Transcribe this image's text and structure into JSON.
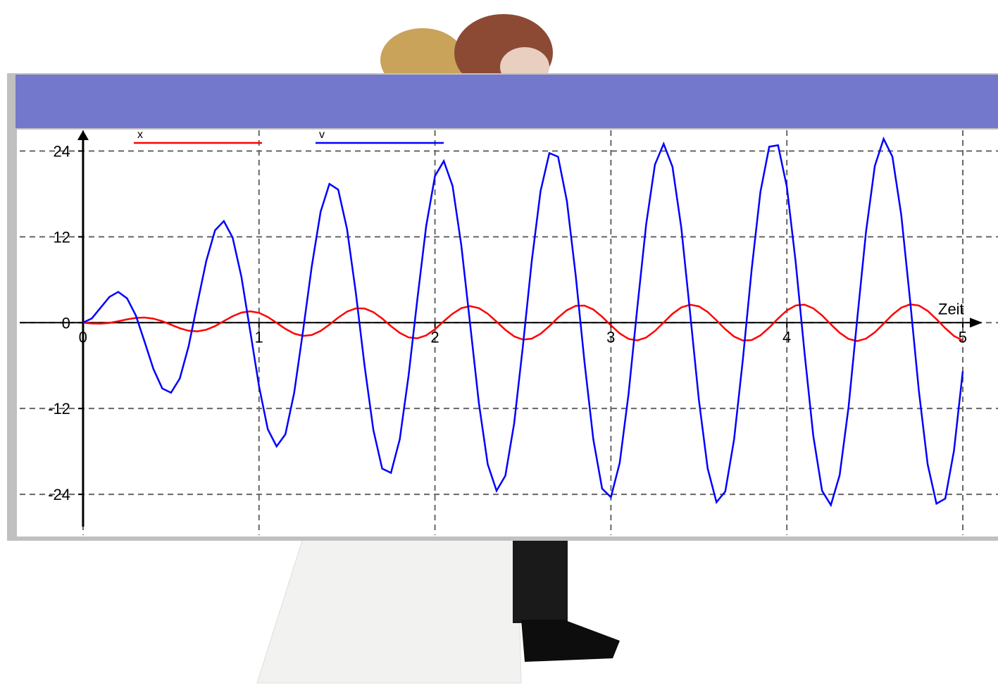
{
  "chart_data": {
    "type": "line",
    "x_label": "Zeit",
    "x": [
      0,
      0.05,
      0.1,
      0.15,
      0.2,
      0.25,
      0.3,
      0.35,
      0.4,
      0.45,
      0.5,
      0.55,
      0.6,
      0.65,
      0.7,
      0.75,
      0.8,
      0.85,
      0.9,
      0.95,
      1,
      1.05,
      1.1,
      1.15,
      1.2,
      1.25,
      1.3,
      1.35,
      1.4,
      1.45,
      1.5,
      1.55,
      1.6,
      1.65,
      1.7,
      1.75,
      1.8,
      1.85,
      1.9,
      1.95,
      2,
      2.05,
      2.1,
      2.15,
      2.2,
      2.25,
      2.3,
      2.35,
      2.4,
      2.45,
      2.5,
      2.55,
      2.6,
      2.65,
      2.7,
      2.75,
      2.8,
      2.85,
      2.9,
      2.95,
      3,
      3.05,
      3.1,
      3.15,
      3.2,
      3.25,
      3.3,
      3.35,
      3.4,
      3.45,
      3.5,
      3.55,
      3.6,
      3.65,
      3.7,
      3.75,
      3.8,
      3.85,
      3.9,
      3.95,
      4,
      4.05,
      4.1,
      4.15,
      4.2,
      4.25,
      4.3,
      4.35,
      4.4,
      4.45,
      4.5,
      4.55,
      4.6,
      4.65,
      4.7,
      4.75,
      4.8,
      4.85,
      4.9,
      4.95,
      5
    ],
    "series": [
      {
        "name": "x",
        "color": "#ff0000",
        "values": [
          0,
          -0.11,
          -0.13,
          -0.03,
          0.2,
          0.46,
          0.67,
          0.72,
          0.56,
          0.2,
          -0.29,
          -0.78,
          -1.13,
          -1.21,
          -0.99,
          -0.48,
          0.21,
          0.9,
          1.41,
          1.59,
          1.38,
          0.8,
          -0.01,
          -0.86,
          -1.53,
          -1.85,
          -1.72,
          -1.15,
          -0.27,
          0.71,
          1.54,
          2,
          1.99,
          1.47,
          0.58,
          -0.48,
          -1.43,
          -2.06,
          -2.19,
          -1.78,
          -0.92,
          0.2,
          1.25,
          2.03,
          2.31,
          2.03,
          1.25,
          0.15,
          -1,
          -1.92,
          -2.37,
          -2.24,
          -1.56,
          -0.48,
          0.71,
          1.74,
          2.35,
          2.39,
          1.84,
          0.83,
          -0.38,
          -1.51,
          -2.27,
          -2.48,
          -2.08,
          -1.16,
          0.03,
          1.24,
          2.13,
          2.51,
          2.28,
          1.49,
          0.32,
          -0.92,
          -1.94,
          -2.49,
          -2.43,
          -1.77,
          -0.68,
          0.58,
          1.7,
          2.41,
          2.52,
          2.01,
          1.02,
          -0.24,
          -1.42,
          -2.27,
          -2.57,
          -2.23,
          -1.35,
          -0.14,
          1.11,
          2.09,
          2.56,
          2.4,
          1.65,
          0.49,
          -0.77,
          -1.86,
          -2.49
        ]
      },
      {
        "name": "v",
        "color": "#0000ff",
        "values": [
          0,
          0.6,
          2.1,
          3.6,
          4.3,
          3.4,
          1,
          -2.7,
          -6.5,
          -9.2,
          -9.8,
          -7.8,
          -3.3,
          2.7,
          8.6,
          12.9,
          14.2,
          11.9,
          6.4,
          -1.2,
          -8.9,
          -14.9,
          -17.3,
          -15.6,
          -9.8,
          -1.2,
          7.9,
          15.5,
          19.4,
          18.6,
          13.1,
          4.2,
          -6,
          -15,
          -20.4,
          -21,
          -16.3,
          -7.4,
          3.3,
          13.5,
          20.5,
          22.6,
          19.1,
          10.8,
          -0.2,
          -11.3,
          -19.8,
          -23.5,
          -21.4,
          -14.1,
          -3.2,
          8.6,
          18.4,
          23.7,
          23.2,
          17,
          6.6,
          -5.5,
          -16.3,
          -23.2,
          -24.4,
          -19.6,
          -10,
          2.1,
          13.7,
          22.1,
          25,
          21.8,
          13.3,
          1.4,
          -10.8,
          -20.4,
          -25.1,
          -23.6,
          -16.3,
          -5.1,
          7.5,
          18.3,
          24.6,
          24.8,
          19,
          8.5,
          -4.1,
          -15.8,
          -23.5,
          -25.5,
          -21.3,
          -11.9,
          0.5,
          12.7,
          21.9,
          25.7,
          23.2,
          15.1,
          3.2,
          -9.5,
          -19.8,
          -25.3,
          -24.6,
          -17.9,
          -6.8
        ]
      }
    ],
    "xlim": [
      -0.36,
      5.2
    ],
    "xticks": [
      0,
      1,
      2,
      3,
      4,
      5
    ],
    "ylim": [
      -29.7,
      26.9
    ],
    "yticks": [
      -24,
      -12,
      0,
      12,
      24
    ],
    "grid": true
  }
}
